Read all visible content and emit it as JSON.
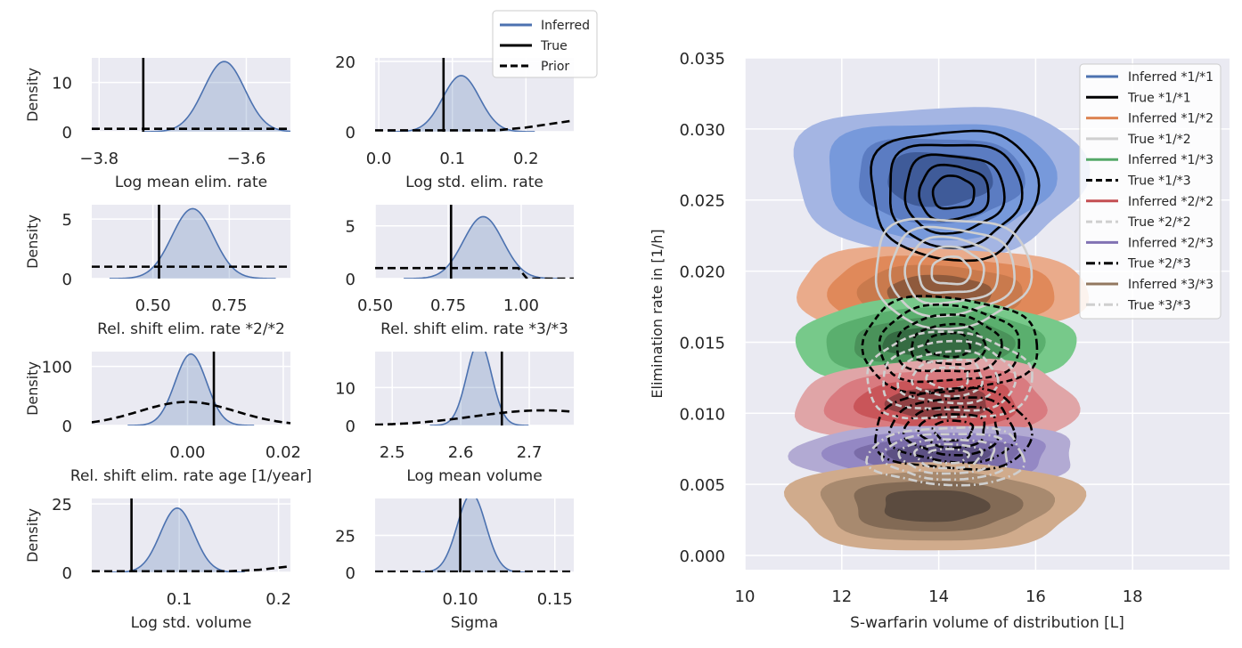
{
  "colors": {
    "background": "#eaeaf2",
    "grid": "#ffffff",
    "inferred": "#4c72b0",
    "true": "#000000",
    "prior": "#000000",
    "groups": [
      "#4c72b0",
      "#dd8452",
      "#55a868",
      "#c44e52",
      "#8172b3",
      "#937860"
    ],
    "true_light": "#cfcfcf"
  },
  "legend_small": {
    "entries": [
      {
        "label": "Inferred",
        "style": "solid",
        "color": "#4c72b0"
      },
      {
        "label": "True",
        "style": "solid",
        "color": "#000000"
      },
      {
        "label": "Prior",
        "style": "dashed",
        "color": "#000000"
      }
    ]
  },
  "chart_data": [
    {
      "type": "area",
      "xlabel": "Log mean elim. rate",
      "ylabel": "Density",
      "xlim": [
        -3.81,
        -3.54
      ],
      "ylim": [
        0,
        15
      ],
      "xticks": [
        -3.8,
        -3.6
      ],
      "xtick_labels": [
        "−3.8",
        "−3.6"
      ],
      "yticks": [
        0,
        10
      ],
      "ytick_labels": [
        "0",
        "10"
      ],
      "inferred": {
        "mean": -3.63,
        "sd": 0.028
      },
      "true_value": -3.74,
      "prior": {
        "type": "flat",
        "value": 0.6,
        "xmin": -3.81,
        "xmax": -3.54
      }
    },
    {
      "type": "area",
      "xlabel": "Log std. elim. rate",
      "ylabel": "",
      "xlim": [
        -0.005,
        0.265
      ],
      "ylim": [
        0,
        21
      ],
      "xticks": [
        0.0,
        0.1,
        0.2
      ],
      "xtick_labels": [
        "0.0",
        "0.1",
        "0.2"
      ],
      "yticks": [
        0,
        20
      ],
      "ytick_labels": [
        "0",
        "20"
      ],
      "inferred": {
        "mean": 0.112,
        "sd": 0.025
      },
      "true_value": 0.088,
      "prior": {
        "type": "ramp",
        "xs": [
          -0.005,
          0.16,
          0.2,
          0.265
        ],
        "ys": [
          0.4,
          0.4,
          1.2,
          3.2
        ]
      }
    },
    {
      "type": "area",
      "xlabel": "Rel. shift elim. rate *2/*2",
      "ylabel": "Density",
      "xlim": [
        0.3,
        0.95
      ],
      "ylim": [
        0,
        6.2
      ],
      "xticks": [
        0.5,
        0.75
      ],
      "xtick_labels": [
        "0.50",
        "0.75"
      ],
      "yticks": [
        0,
        5
      ],
      "ytick_labels": [
        "0",
        "5"
      ],
      "inferred": {
        "mean": 0.63,
        "sd": 0.068
      },
      "true_value": 0.52,
      "prior": {
        "type": "flat",
        "value": 1.0,
        "xmin": 0.3,
        "xmax": 0.95
      }
    },
    {
      "type": "area",
      "xlabel": "Rel. shift elim. rate *3/*3",
      "ylabel": "",
      "xlim": [
        0.5,
        1.18
      ],
      "ylim": [
        0,
        7.0
      ],
      "xticks": [
        0.5,
        0.75,
        1.0
      ],
      "xtick_labels": [
        "0.50",
        "0.75",
        "1.00"
      ],
      "yticks": [
        0,
        5
      ],
      "ytick_labels": [
        "0",
        "5"
      ],
      "inferred": {
        "mean": 0.87,
        "sd": 0.068
      },
      "true_value": 0.76,
      "prior": {
        "type": "step",
        "xs": [
          0.5,
          0.99,
          1.02,
          1.18
        ],
        "ys": [
          1.0,
          1.0,
          0.0,
          0.0
        ]
      }
    },
    {
      "type": "area",
      "xlabel": "Rel. shift elim. rate age [1/year]",
      "ylabel": "Density",
      "xlim": [
        -0.02,
        0.0215
      ],
      "ylim": [
        0,
        125
      ],
      "xticks": [
        0.0,
        0.02
      ],
      "xtick_labels": [
        "0.00",
        "0.02"
      ],
      "yticks": [
        0,
        100
      ],
      "ytick_labels": [
        "0",
        "100"
      ],
      "inferred": {
        "mean": 0.0007,
        "sd": 0.0033
      },
      "true_value": 0.0055,
      "prior": {
        "type": "normal",
        "mean": 0.0,
        "sd": 0.01
      }
    },
    {
      "type": "area",
      "xlabel": "Log mean volume",
      "ylabel": "",
      "xlim": [
        2.475,
        2.765
      ],
      "ylim": [
        0,
        19.5
      ],
      "xticks": [
        2.5,
        2.6,
        2.7
      ],
      "xtick_labels": [
        "2.5",
        "2.6",
        "2.7"
      ],
      "yticks": [
        0,
        10
      ],
      "ytick_labels": [
        "0",
        "10"
      ],
      "inferred": {
        "mean": 2.627,
        "sd": 0.018
      },
      "true_value": 2.66,
      "prior": {
        "type": "normal",
        "mean": 2.72,
        "sd": 0.1
      }
    },
    {
      "type": "area",
      "xlabel": "Log std. volume",
      "ylabel": "Density",
      "xlim": [
        0.012,
        0.212
      ],
      "ylim": [
        0,
        27
      ],
      "xticks": [
        0.1,
        0.2
      ],
      "xtick_labels": [
        "0.1",
        "0.2"
      ],
      "yticks": [
        0,
        25
      ],
      "ytick_labels": [
        "0",
        "25"
      ],
      "inferred": {
        "mean": 0.098,
        "sd": 0.017
      },
      "true_value": 0.052,
      "prior": {
        "type": "ramp",
        "xs": [
          0.012,
          0.15,
          0.18,
          0.212
        ],
        "ys": [
          0.4,
          0.4,
          0.9,
          2.2
        ]
      }
    },
    {
      "type": "area",
      "xlabel": "Sigma",
      "ylabel": "",
      "xlim": [
        0.055,
        0.16
      ],
      "ylim": [
        0,
        50
      ],
      "xticks": [
        0.1,
        0.15
      ],
      "xtick_labels": [
        "0.10",
        "0.15"
      ],
      "yticks": [
        0,
        25
      ],
      "ytick_labels": [
        "0",
        "25"
      ],
      "inferred": {
        "mean": 0.106,
        "sd": 0.0075
      },
      "true_value": 0.1,
      "prior": {
        "type": "flat",
        "value": 0.5,
        "xmin": 0.055,
        "xmax": 0.16
      }
    },
    {
      "type": "contour",
      "xlabel": "S-warfarin volume of distribution [L]",
      "ylabel": "Elimination rate in [1/h]",
      "xlim": [
        10,
        20
      ],
      "ylim": [
        -0.001,
        0.035
      ],
      "xticks": [
        10,
        12,
        14,
        16,
        18
      ],
      "xtick_labels": [
        "10",
        "12",
        "14",
        "16",
        "18"
      ],
      "yticks": [
        0.0,
        0.005,
        0.01,
        0.015,
        0.02,
        0.025,
        0.03,
        0.035
      ],
      "ytick_labels": [
        "0.000",
        "0.005",
        "0.010",
        "0.015",
        "0.020",
        "0.025",
        "0.030",
        "0.035"
      ],
      "legend_position": "top-right",
      "inferred_groups": [
        {
          "name": "Inferred *1/*1",
          "color": "#4c72b0",
          "fills": [
            "#a4b5e3",
            "#7799db",
            "#5b7cc2",
            "#3f5b99"
          ],
          "cx": 14.0,
          "cy": 0.0265,
          "rx": 3.0,
          "ry": 0.0052
        },
        {
          "name": "Inferred *1/*2",
          "color": "#dd8452",
          "fills": [
            "#eaab8b",
            "#e0895a",
            "#c97a4d",
            "#8f5a3c"
          ],
          "cx": 14.0,
          "cy": 0.0185,
          "rx": 3.0,
          "ry": 0.0032
        },
        {
          "name": "Inferred *1/*3",
          "color": "#55a868",
          "fills": [
            "#77c98a",
            "#5aaf6e",
            "#4a925a",
            "#356b42"
          ],
          "cx": 13.9,
          "cy": 0.015,
          "rx": 2.9,
          "ry": 0.0029
        },
        {
          "name": "Inferred *2/*2",
          "color": "#c44e52",
          "fills": [
            "#e0a5a7",
            "#d97b80",
            "#c95559",
            "#8f4043"
          ],
          "cx": 14.0,
          "cy": 0.0107,
          "rx": 2.9,
          "ry": 0.003
        },
        {
          "name": "Inferred *2/*3",
          "color": "#8172b3",
          "fills": [
            "#b2aad3",
            "#9488c4",
            "#7a6ca8",
            "#5c5083"
          ],
          "cx": 14.0,
          "cy": 0.007,
          "rx": 2.9,
          "ry": 0.0022
        },
        {
          "name": "Inferred *3/*3",
          "color": "#937860",
          "fills": [
            "#d0ab8c",
            "#a88a6f",
            "#826a55",
            "#5b4b3f"
          ],
          "cx": 13.9,
          "cy": 0.0035,
          "rx": 3.0,
          "ry": 0.0031
        }
      ],
      "true_groups": [
        {
          "name": "True *1/*1",
          "color": "#000000",
          "dash": "",
          "cx": 14.3,
          "cy": 0.0255,
          "rx": 1.7,
          "ry": 0.0045
        },
        {
          "name": "True *1/*2",
          "color": "#cfcfcf",
          "dash": "",
          "cx": 14.25,
          "cy": 0.02,
          "rx": 1.6,
          "ry": 0.0038
        },
        {
          "name": "True *1/*3",
          "color": "#000000",
          "dash": "7,4",
          "cx": 14.2,
          "cy": 0.0148,
          "rx": 1.8,
          "ry": 0.0033
        },
        {
          "name": "True *2/*2",
          "color": "#cfcfcf",
          "dash": "7,4",
          "cx": 14.2,
          "cy": 0.0125,
          "rx": 1.7,
          "ry": 0.003
        },
        {
          "name": "True *2/*3",
          "color": "#000000",
          "dash": "10,4,2,4",
          "cx": 14.3,
          "cy": 0.0088,
          "rx": 1.6,
          "ry": 0.0028
        },
        {
          "name": "True *3/*3",
          "color": "#cfcfcf",
          "dash": "10,4,2,4",
          "cx": 14.2,
          "cy": 0.007,
          "rx": 1.6,
          "ry": 0.002
        }
      ],
      "legend": [
        {
          "label": "Inferred *1/*1",
          "color": "#4c72b0",
          "dash": ""
        },
        {
          "label": "True *1/*1",
          "color": "#000000",
          "dash": ""
        },
        {
          "label": "Inferred *1/*2",
          "color": "#dd8452",
          "dash": ""
        },
        {
          "label": "True *1/*2",
          "color": "#cfcfcf",
          "dash": ""
        },
        {
          "label": "Inferred *1/*3",
          "color": "#55a868",
          "dash": ""
        },
        {
          "label": "True *1/*3",
          "color": "#000000",
          "dash": "7,4"
        },
        {
          "label": "Inferred *2/*2",
          "color": "#c44e52",
          "dash": ""
        },
        {
          "label": "True *2/*2",
          "color": "#cfcfcf",
          "dash": "7,4"
        },
        {
          "label": "Inferred *2/*3",
          "color": "#8172b3",
          "dash": ""
        },
        {
          "label": "True *2/*3",
          "color": "#000000",
          "dash": "10,4,2,4"
        },
        {
          "label": "Inferred *3/*3",
          "color": "#937860",
          "dash": ""
        },
        {
          "label": "True *3/*3",
          "color": "#cfcfcf",
          "dash": "10,4,2,4"
        }
      ]
    }
  ]
}
